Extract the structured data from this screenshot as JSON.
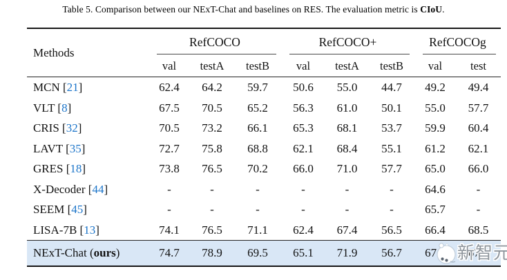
{
  "caption": {
    "prefix": "Table 5. Comparison between our NExT-Chat and baselines on RES. The evaluation metric is ",
    "bold": "CIoU",
    "suffix": "."
  },
  "table": {
    "methods_header": "Methods",
    "groups": [
      {
        "label": "RefCOCO",
        "span": 3
      },
      {
        "label": "RefCOCO+",
        "span": 3
      },
      {
        "label": "RefCOCOg",
        "span": 2
      }
    ],
    "subheaders": [
      "val",
      "testA",
      "testB",
      "val",
      "testA",
      "testB",
      "val",
      "test"
    ],
    "rows": [
      {
        "method": "MCN",
        "cite": "21",
        "values": [
          "62.4",
          "64.2",
          "59.7",
          "50.6",
          "55.0",
          "44.7",
          "49.2",
          "49.4"
        ]
      },
      {
        "method": "VLT",
        "cite": "8",
        "values": [
          "67.5",
          "70.5",
          "65.2",
          "56.3",
          "61.0",
          "50.1",
          "55.0",
          "57.7"
        ]
      },
      {
        "method": "CRIS",
        "cite": "32",
        "values": [
          "70.5",
          "73.2",
          "66.1",
          "65.3",
          "68.1",
          "53.7",
          "59.9",
          "60.4"
        ]
      },
      {
        "method": "LAVT",
        "cite": "35",
        "values": [
          "72.7",
          "75.8",
          "68.8",
          "62.1",
          "68.4",
          "55.1",
          "61.2",
          "62.1"
        ]
      },
      {
        "method": "GRES",
        "cite": "18",
        "values": [
          "73.8",
          "76.5",
          "70.2",
          "66.0",
          "71.0",
          "57.7",
          "65.0",
          "66.0"
        ]
      },
      {
        "method": "X-Decoder",
        "cite": "44",
        "values": [
          "-",
          "-",
          "-",
          "-",
          "-",
          "-",
          "64.6",
          "-"
        ]
      },
      {
        "method": "SEEM",
        "cite": "45",
        "values": [
          "-",
          "-",
          "-",
          "-",
          "-",
          "-",
          "65.7",
          "-"
        ]
      },
      {
        "method": "LISA-7B",
        "cite": "13",
        "values": [
          "74.1",
          "76.5",
          "71.1",
          "62.4",
          "67.4",
          "56.5",
          "66.4",
          "68.5"
        ]
      },
      {
        "method_prefix": "NExT-Chat (",
        "method_bold": "ours",
        "method_suffix": ")",
        "highlight": true,
        "values": [
          "74.7",
          "78.9",
          "69.5",
          "65.1",
          "71.9",
          "56.7",
          "67.0",
          "67.0"
        ]
      }
    ]
  },
  "watermark": {
    "text": "新智元"
  },
  "colors": {
    "citation_blue": "#1b74c9",
    "highlight_row": "#d9e7f6"
  }
}
